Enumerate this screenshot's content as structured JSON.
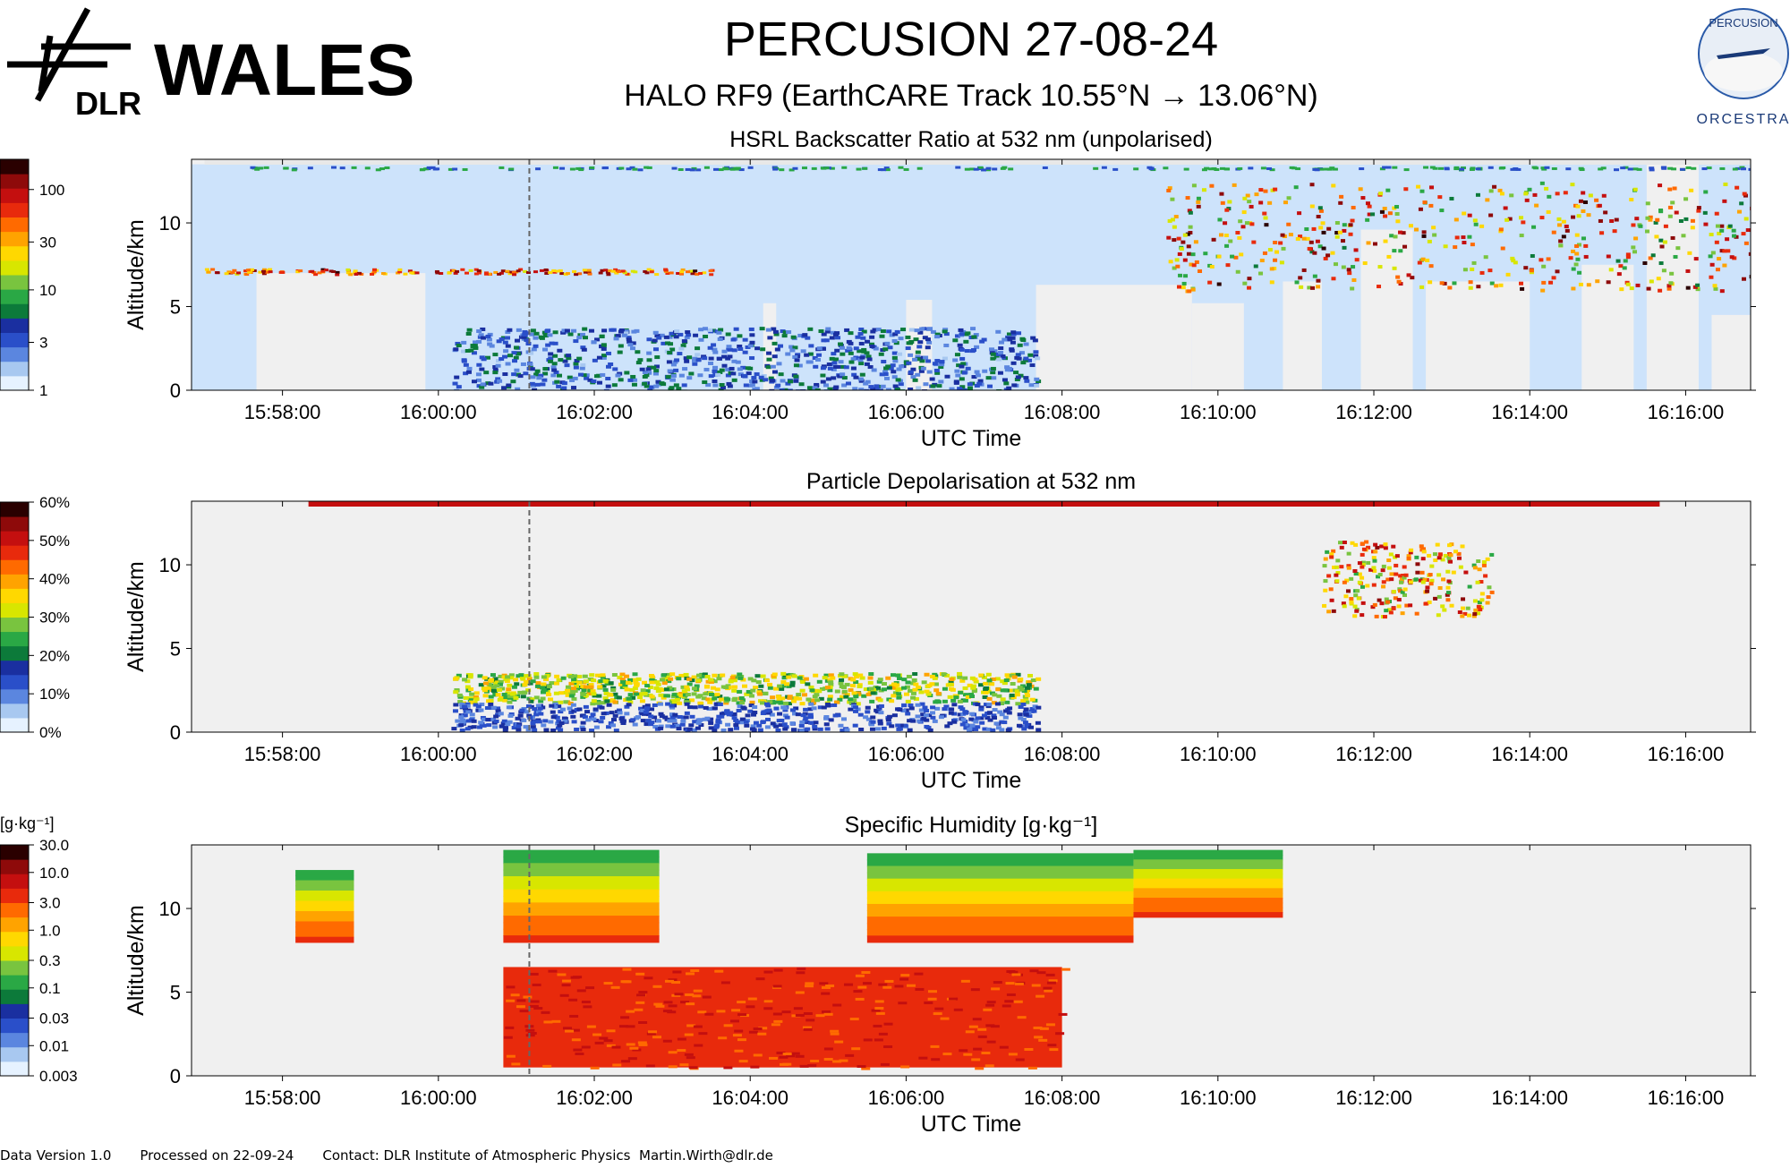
{
  "header": {
    "logo_org": "DLR",
    "logo_text": "WALES",
    "title": "PERCUSION  27-08-24",
    "subtitle": "HALO RF9 (EarthCARE Track  10.55°N → 13.06°N)",
    "right_logo_top": "PERCUSION",
    "right_logo_bottom": "ORCESTRA"
  },
  "footer": {
    "version": "Data Version 1.0",
    "processed": "Processed on 22-09-24",
    "contact": "Contact: DLR Institute of Atmospheric Physics  Martin.Wirth@dlr.de"
  },
  "chart_data": [
    {
      "type": "heatmap",
      "title": "HSRL Backscatter Ratio at 532 nm (unpolarised)",
      "xlabel": "UTC Time",
      "ylabel": "Altitude/km",
      "x_ticks": [
        "15:58:00",
        "16:00:00",
        "16:02:00",
        "16:04:00",
        "16:06:00",
        "16:08:00",
        "16:10:00",
        "16:12:00",
        "16:14:00",
        "16:16:00"
      ],
      "xlim": [
        "15:56:50",
        "16:16:50"
      ],
      "y_ticks": [
        0,
        5,
        10
      ],
      "ylim": [
        0,
        13.8
      ],
      "colorbar": {
        "scale": "log",
        "range": [
          1,
          200
        ],
        "ticks": [
          "1",
          "3",
          "10",
          "30",
          "100"
        ],
        "unit": ""
      },
      "marker_time": "16:01:10",
      "features": [
        {
          "name": "clear-air",
          "value": 1.2
        },
        {
          "name": "cirrus-top",
          "t": [
            "15:57:00",
            "16:16:50"
          ],
          "alt_km": 13.5,
          "value": 4
        },
        {
          "name": "mid-level-layer",
          "t": [
            "15:57:00",
            "16:03:30"
          ],
          "alt_km": 7.1,
          "value": 30
        },
        {
          "name": "boundary-layer",
          "t": [
            "16:00:10",
            "16:07:40"
          ],
          "alt_km": [
            0,
            3.8
          ],
          "value": 3
        },
        {
          "name": "deep-convection",
          "t": [
            "16:11:20",
            "16:16:50"
          ],
          "alt_km": [
            0,
            13.5
          ],
          "value": 100
        }
      ]
    },
    {
      "type": "heatmap",
      "title": "Particle Depolarisation at 532 nm",
      "xlabel": "UTC Time",
      "ylabel": "Altitude/km",
      "x_ticks": [
        "15:58:00",
        "16:00:00",
        "16:02:00",
        "16:04:00",
        "16:06:00",
        "16:08:00",
        "16:10:00",
        "16:12:00",
        "16:14:00",
        "16:16:00"
      ],
      "xlim": [
        "15:56:50",
        "16:16:50"
      ],
      "y_ticks": [
        0,
        5,
        10
      ],
      "ylim": [
        0,
        13.8
      ],
      "colorbar": {
        "scale": "linear",
        "range": [
          0,
          60
        ],
        "ticks": [
          "0%",
          "10%",
          "20%",
          "30%",
          "40%",
          "50%",
          "60%"
        ],
        "unit": "%"
      },
      "marker_time": "16:01:10",
      "features": [
        {
          "name": "cirrus-top",
          "t": [
            "15:58:20",
            "16:15:40"
          ],
          "alt_km": 13.6,
          "value": 50
        },
        {
          "name": "dust-layer-upper",
          "t": [
            "16:00:10",
            "16:07:40"
          ],
          "alt_km": [
            1.8,
            3.6
          ],
          "value": 28
        },
        {
          "name": "marine-layer-lower",
          "t": [
            "16:00:10",
            "16:07:40"
          ],
          "alt_km": [
            0.2,
            1.8
          ],
          "value": 8
        },
        {
          "name": "ice-clouds",
          "t": [
            "16:11:20",
            "16:13:30"
          ],
          "alt_km": [
            7,
            11.5
          ],
          "value": 35
        }
      ]
    },
    {
      "type": "heatmap",
      "title": "Specific Humidity [g·kg⁻¹]",
      "xlabel": "UTC Time",
      "ylabel": "Altitude/km",
      "x_ticks": [
        "15:58:00",
        "16:00:00",
        "16:02:00",
        "16:04:00",
        "16:06:00",
        "16:08:00",
        "16:10:00",
        "16:12:00",
        "16:14:00",
        "16:16:00"
      ],
      "xlim": [
        "15:56:50",
        "16:16:50"
      ],
      "y_ticks": [
        0,
        5,
        10
      ],
      "ylim": [
        0,
        13.8
      ],
      "colorbar": {
        "scale": "log",
        "range": [
          0.003,
          30
        ],
        "ticks": [
          "0.003",
          "0.01",
          "0.03",
          "0.1",
          "0.3",
          "1.0",
          "3.0",
          "10.0",
          "30.0"
        ],
        "unit": "[g·kg⁻¹]"
      },
      "marker_time": "16:01:10",
      "upper_blocks": [
        {
          "t": [
            "15:58:10",
            "15:58:55"
          ],
          "alt_km": [
            8,
            12.3
          ]
        },
        {
          "t": [
            "16:00:50",
            "16:02:50"
          ],
          "alt_km": [
            8,
            13.5
          ]
        },
        {
          "t": [
            "16:05:30",
            "16:08:55"
          ],
          "alt_km": [
            8,
            13.3
          ]
        },
        {
          "t": [
            "16:08:55",
            "16:10:50"
          ],
          "alt_km": [
            9.5,
            13.5
          ]
        }
      ],
      "lower_blocks": [
        {
          "t": [
            "16:00:50",
            "16:08:00"
          ],
          "alt_km": [
            0.5,
            6.5
          ]
        }
      ],
      "humidity_range_upper_gkg": [
        0.02,
        1.5
      ],
      "humidity_range_lower_gkg": [
        3,
        18
      ]
    }
  ]
}
